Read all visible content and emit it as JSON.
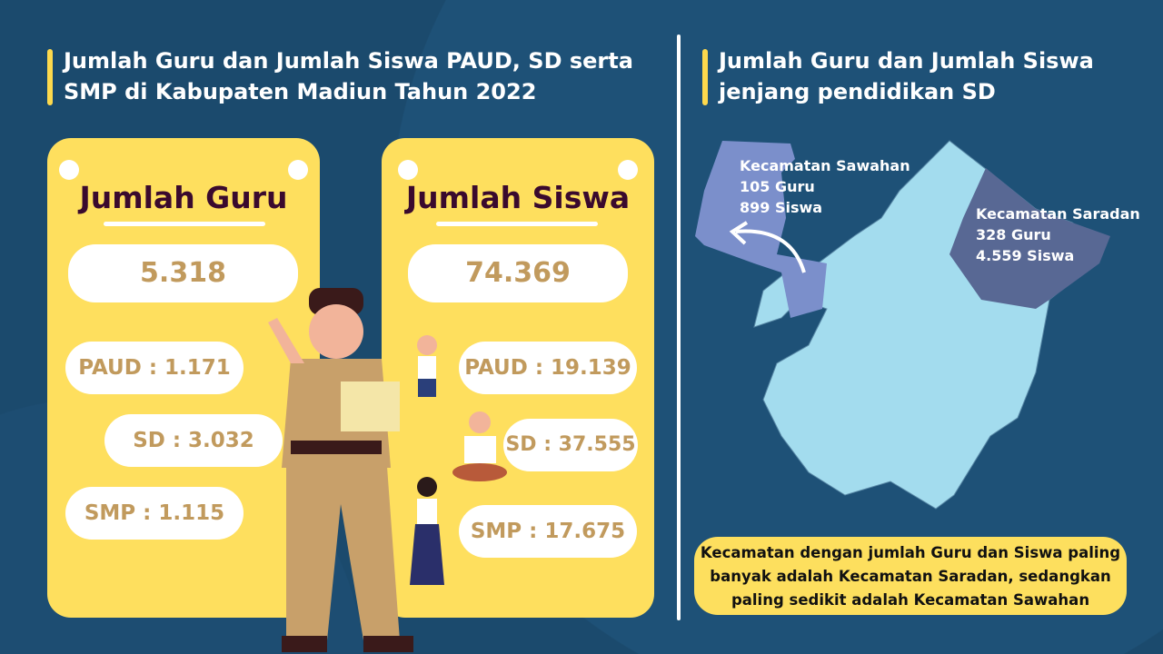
{
  "left_title": "Jumlah Guru dan Jumlah Siswa PAUD, SD serta SMP di Kabupaten Madiun Tahun 2022",
  "guru": {
    "heading": "Jumlah Guru",
    "total": "5.318",
    "paud": "PAUD : 1.171",
    "sd": "SD : 3.032",
    "smp": "SMP : 1.115"
  },
  "siswa": {
    "heading": "Jumlah Siswa",
    "total": "74.369",
    "paud": "PAUD : 19.139",
    "sd": "SD : 37.555",
    "smp": "SMP : 17.675"
  },
  "right_title": "Jumlah Guru dan Jumlah Siswa jenjang pendidikan SD",
  "map": {
    "sawahan": {
      "name": "Kecamatan Sawahan",
      "guru": "105 Guru",
      "siswa": "899 Siswa"
    },
    "saradan": {
      "name": "Kecamatan Saradan",
      "guru": "328 Guru",
      "siswa": "4.559 Siswa"
    },
    "colors": {
      "base": "#a3dcee",
      "sawahan": "#7b8fcb",
      "saradan": "#586894"
    }
  },
  "note": "Kecamatan dengan jumlah Guru dan Siswa paling banyak adalah Kecamatan Saradan, sedangkan paling sedikit adalah Kecamatan Sawahan",
  "colors": {
    "background": "#1b4a6d",
    "accent": "#fedf5e",
    "number": "#c19a5d",
    "heading": "#3a0a2e"
  }
}
